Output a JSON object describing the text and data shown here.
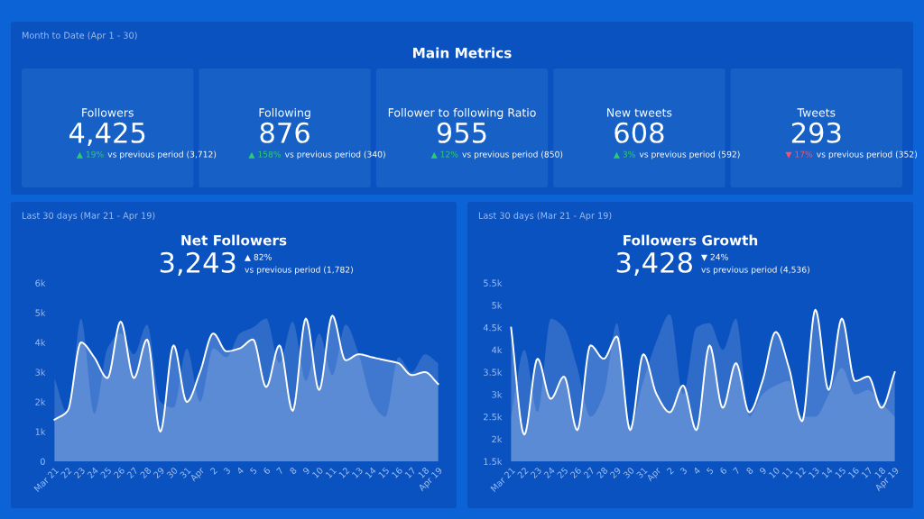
{
  "chart_data": [
    {
      "type": "other",
      "title": "Main Metrics",
      "subtitle": "Month to Date (Apr 1 - 30)",
      "categories": [
        "Followers",
        "Following",
        "Follower to following Ratio",
        "New tweets",
        "Tweets"
      ],
      "value_labels": [
        "4,425",
        "876",
        "955",
        "608",
        "293"
      ],
      "annotations": [
        "▲ 19%",
        "vs previous period (3,712)",
        "▲ 158%",
        "vs previous period (340)",
        "▲ 12%",
        "vs previous period (850)",
        "▲ 3%",
        "vs previous period (592)",
        "▼ 17%",
        "vs previous period (352)"
      ],
      "colors": [
        "#2ecc71",
        "#2ecc71",
        "#2ecc71",
        "#2ecc71",
        "#ff4d6d"
      ]
    },
    {
      "type": "area",
      "title": "Net Followers",
      "subtitle": "Last 30 days (Mar 21 - Apr 19)",
      "annotations": [
        "3,243",
        "▲ 82%",
        "vs previous period (1,782)"
      ],
      "categories": [
        "Mar 21",
        "22",
        "23",
        "24",
        "25",
        "26",
        "27",
        "28",
        "29",
        "30",
        "31",
        "Apr",
        "2",
        "3",
        "4",
        "5",
        "6",
        "7",
        "8",
        "9",
        "10",
        "11",
        "12",
        "13",
        "14",
        "15",
        "16",
        "17",
        "18",
        "Apr 19"
      ],
      "series": [
        {
          "type": "area",
          "color": "#4f7fd0",
          "values": [
            2800,
            1600,
            4800,
            1600,
            3800,
            4300,
            3600,
            4600,
            2000,
            1800,
            3800,
            2000,
            3800,
            3500,
            4300,
            4500,
            4800,
            3300,
            4700,
            2700,
            4300,
            2900,
            4600,
            3600,
            2000,
            1500,
            3500,
            3000,
            3600,
            3300
          ]
        },
        {
          "type": "area",
          "color": "#ffffff",
          "values": [
            1400,
            1700,
            4000,
            3500,
            2800,
            4700,
            2800,
            4100,
            1000,
            3900,
            2000,
            3000,
            4300,
            3700,
            3800,
            4100,
            2500,
            3900,
            1700,
            4800,
            2400,
            4900,
            3400,
            3600,
            3500,
            3400,
            3300,
            2900,
            3000,
            2600
          ]
        }
      ],
      "ylim": [
        0,
        6000
      ],
      "yticks": [
        0,
        {
          "value": 1000,
          "label": "1k"
        },
        {
          "value": 2000,
          "label": "2k"
        },
        {
          "value": 3000,
          "label": "3k"
        },
        {
          "value": 4000,
          "label": "4k"
        },
        {
          "value": 5000,
          "label": "5k"
        },
        {
          "value": 6000,
          "label": "6k"
        }
      ]
    },
    {
      "type": "area",
      "title": "Followers Growth",
      "subtitle": "Last 30 days (Mar 21 - Apr 19)",
      "annotations": [
        "3,428",
        "▼ 24%",
        "vs previous period (4,536)"
      ],
      "categories": [
        "Mar 21",
        "22",
        "23",
        "24",
        "25",
        "26",
        "27",
        "28",
        "29",
        "30",
        "31",
        "Apr",
        "2",
        "3",
        "4",
        "5",
        "6",
        "7",
        "8",
        "9",
        "10",
        "11",
        "12",
        "13",
        "14",
        "15",
        "16",
        "17",
        "18",
        "Apr 19"
      ],
      "series": [
        {
          "type": "area",
          "color": "#4f7fd0",
          "values": [
            2500,
            4000,
            2600,
            4700,
            4500,
            3600,
            2500,
            3000,
            4600,
            2300,
            3300,
            4200,
            4800,
            3000,
            4500,
            4600,
            4000,
            4700,
            2500,
            3000,
            3200,
            3300,
            2500,
            2500,
            3000,
            3600,
            3000,
            3100,
            2800,
            2500
          ]
        },
        {
          "type": "area",
          "color": "#ffffff",
          "values": [
            4500,
            2100,
            3800,
            2900,
            3400,
            2200,
            4100,
            3800,
            4300,
            2200,
            3900,
            3000,
            2600,
            3200,
            2200,
            4100,
            2700,
            3700,
            2600,
            3300,
            4400,
            3600,
            2400,
            4900,
            3100,
            4700,
            3300,
            3400,
            2700,
            3500
          ]
        }
      ],
      "ylim": [
        1500,
        5500
      ],
      "yticks": [
        {
          "value": 1500,
          "label": "1.5k"
        },
        {
          "value": 2000,
          "label": "2k"
        },
        {
          "value": 2500,
          "label": "2.5k"
        },
        {
          "value": 3000,
          "label": "3k"
        },
        {
          "value": 3500,
          "label": "3.5k"
        },
        {
          "value": 4000,
          "label": "4k"
        },
        {
          "value": 4500,
          "label": "4.5k"
        },
        {
          "value": 5000,
          "label": "5k"
        },
        {
          "value": 5500,
          "label": "5.5k"
        }
      ]
    }
  ]
}
